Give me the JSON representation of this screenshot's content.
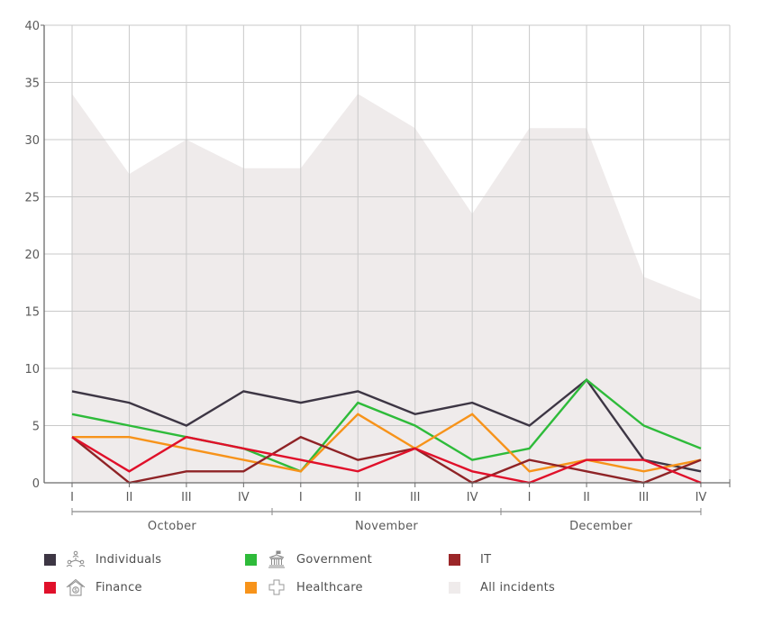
{
  "chart_data": {
    "type": "line",
    "title": "",
    "xlabel": "",
    "ylabel": "",
    "ylim": [
      0,
      40
    ],
    "yticks": [
      0,
      5,
      10,
      15,
      20,
      25,
      30,
      35,
      40
    ],
    "grid": true,
    "categories": [
      "I",
      "II",
      "III",
      "IV",
      "I",
      "II",
      "III",
      "IV",
      "I",
      "II",
      "III",
      "IV"
    ],
    "groups": [
      {
        "label": "October",
        "span": [
          0,
          3
        ]
      },
      {
        "label": "November",
        "span": [
          4,
          7
        ]
      },
      {
        "label": "December",
        "span": [
          8,
          11
        ]
      }
    ],
    "area_series": {
      "name": "All incidents",
      "color": "#efebeb",
      "values": [
        34,
        27,
        30,
        27.5,
        27.5,
        34,
        31,
        23.5,
        31,
        31,
        18,
        16
      ]
    },
    "series": [
      {
        "name": "Individuals",
        "color": "#3d3644",
        "values": [
          8,
          7,
          5,
          8,
          7,
          8,
          6,
          7,
          5,
          9,
          2,
          1
        ]
      },
      {
        "name": "Government",
        "color": "#2ebb3a",
        "values": [
          6,
          5,
          4,
          3,
          1,
          7,
          5,
          2,
          3,
          9,
          5,
          3
        ]
      },
      {
        "name": "Healthcare",
        "color": "#f7931a",
        "values": [
          4,
          4,
          3,
          2,
          1,
          6,
          3,
          6,
          1,
          2,
          1,
          2
        ]
      },
      {
        "name": "IT",
        "color": "#8f2326",
        "values": [
          4,
          0,
          1,
          1,
          4,
          2,
          3,
          0,
          2,
          1,
          0,
          2
        ]
      },
      {
        "name": "Finance",
        "color": "#e0102a",
        "values": [
          4,
          1,
          4,
          3,
          2,
          1,
          3,
          1,
          0,
          2,
          2,
          0
        ]
      }
    ],
    "legend_position": "bottom"
  },
  "legend": {
    "items": [
      {
        "label": "Individuals",
        "color": "#3d3644",
        "icon": "network-people-icon"
      },
      {
        "label": "Government",
        "color": "#2ebb3a",
        "icon": "government-building-icon"
      },
      {
        "label": "IT",
        "color": "#9b2628",
        "icon": ""
      },
      {
        "label": "Finance",
        "color": "#e0102a",
        "icon": "bank-house-icon"
      },
      {
        "label": "Healthcare",
        "color": "#f7931a",
        "icon": "medical-cross-icon"
      },
      {
        "label": "All incidents",
        "color": "#efebeb",
        "icon": ""
      }
    ]
  }
}
